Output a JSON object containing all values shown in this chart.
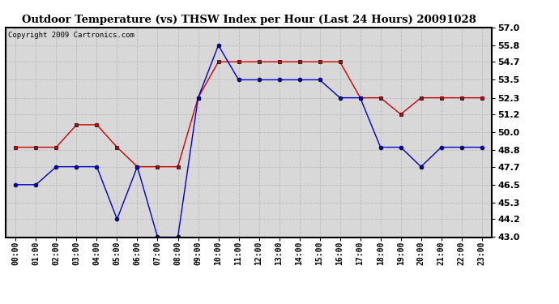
{
  "title": "Outdoor Temperature (vs) THSW Index per Hour (Last 24 Hours) 20091028",
  "copyright": "Copyright 2009 Cartronics.com",
  "hours": [
    "00:00",
    "01:00",
    "02:00",
    "03:00",
    "04:00",
    "05:00",
    "06:00",
    "07:00",
    "08:00",
    "09:00",
    "10:00",
    "11:00",
    "12:00",
    "13:00",
    "14:00",
    "15:00",
    "16:00",
    "17:00",
    "18:00",
    "19:00",
    "20:00",
    "21:00",
    "22:00",
    "23:00"
  ],
  "temp": [
    46.5,
    46.5,
    47.7,
    47.7,
    47.7,
    44.2,
    47.7,
    43.0,
    43.0,
    52.3,
    55.8,
    53.5,
    53.5,
    53.5,
    53.5,
    53.5,
    52.3,
    52.3,
    49.0,
    49.0,
    47.7,
    49.0,
    49.0,
    49.0
  ],
  "thsw": [
    49.0,
    49.0,
    49.0,
    50.5,
    50.5,
    49.0,
    47.7,
    47.7,
    47.7,
    52.3,
    54.7,
    54.7,
    54.7,
    54.7,
    54.7,
    54.7,
    54.7,
    52.3,
    52.3,
    51.2,
    52.3,
    52.3,
    52.3,
    52.3
  ],
  "temp_color": "#0000cc",
  "thsw_color": "#cc0000",
  "background_color": "#ffffff",
  "plot_bg_color": "#d8d8d8",
  "grid_color": "#bbbbbb",
  "ylim": [
    43.0,
    57.0
  ],
  "yticks": [
    43.0,
    44.2,
    45.3,
    46.5,
    47.7,
    48.8,
    50.0,
    51.2,
    52.3,
    53.5,
    54.7,
    55.8,
    57.0
  ]
}
